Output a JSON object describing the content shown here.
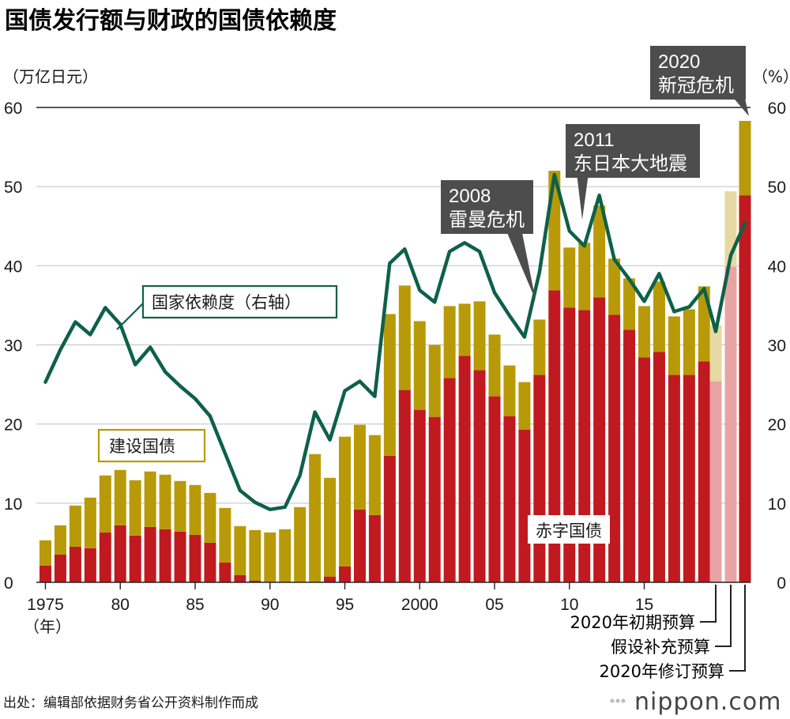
{
  "chart_data": {
    "type": "bar",
    "title": "国债发行额与财政的国债依赖度",
    "y_left_label": "（万亿日元）",
    "y_right_label": "（%）",
    "ylim": [
      0,
      60
    ],
    "y2lim": [
      0,
      60
    ],
    "yticks": [
      "0",
      "10",
      "20",
      "30",
      "40",
      "50",
      "60"
    ],
    "x_ticks": [
      {
        "year": 1975,
        "label": "1975"
      },
      {
        "year": 1980,
        "label": "80"
      },
      {
        "year": 1985,
        "label": "85"
      },
      {
        "year": 1990,
        "label": "90"
      },
      {
        "year": 1995,
        "label": "95"
      },
      {
        "year": 2000,
        "label": "2000"
      },
      {
        "year": 2005,
        "label": "05"
      },
      {
        "year": 2010,
        "label": "10"
      },
      {
        "year": 2015,
        "label": "15"
      }
    ],
    "x_unit": "（年）",
    "categories": [
      1975,
      1976,
      1977,
      1978,
      1979,
      1980,
      1981,
      1982,
      1983,
      1984,
      1985,
      1986,
      1987,
      1988,
      1989,
      1990,
      1991,
      1992,
      1993,
      1994,
      1995,
      1996,
      1997,
      1998,
      1999,
      2000,
      2001,
      2002,
      2003,
      2004,
      2005,
      2006,
      2007,
      2008,
      2009,
      2010,
      2011,
      2012,
      2013,
      2014,
      2015,
      2016,
      2017,
      2018,
      2019
    ],
    "series": [
      {
        "name": "赤字国债",
        "color": "#c0191f",
        "values": [
          2.1,
          3.5,
          4.5,
          4.3,
          6.3,
          7.2,
          5.9,
          7.0,
          6.7,
          6.4,
          6.0,
          5.0,
          2.5,
          0.9,
          0.2,
          0.0,
          0.0,
          0.0,
          0.0,
          0.7,
          2.0,
          9.2,
          8.5,
          16.0,
          24.3,
          21.8,
          20.9,
          25.8,
          28.6,
          26.8,
          23.5,
          21.0,
          19.3,
          26.2,
          36.9,
          34.7,
          34.4,
          36.0,
          33.8,
          31.9,
          28.4,
          29.1,
          26.2,
          26.2,
          27.9
        ]
      },
      {
        "name": "建设国债",
        "color": "#b89a08",
        "values": [
          3.2,
          3.7,
          5.2,
          6.4,
          7.2,
          7.0,
          7.0,
          7.0,
          6.9,
          6.4,
          6.3,
          6.3,
          6.9,
          6.2,
          6.4,
          6.3,
          6.7,
          9.5,
          16.2,
          12.5,
          16.4,
          10.7,
          10.1,
          17.9,
          13.2,
          11.2,
          9.1,
          9.1,
          6.6,
          8.7,
          7.8,
          6.4,
          6.0,
          7.0,
          15.1,
          7.6,
          8.5,
          11.6,
          7.1,
          6.5,
          6.5,
          8.9,
          7.4,
          8.3,
          9.5
        ]
      },
      {
        "name": "国家依赖度（右轴）",
        "color": "#0d6148",
        "values": [
          25.3,
          29.4,
          32.9,
          31.3,
          34.7,
          32.6,
          27.5,
          29.7,
          26.6,
          24.8,
          23.2,
          21.0,
          16.3,
          11.6,
          10.1,
          9.2,
          9.5,
          13.5,
          21.5,
          18.0,
          24.2,
          25.4,
          23.5,
          40.3,
          42.1,
          36.9,
          35.4,
          41.8,
          42.9,
          41.8,
          36.6,
          33.7,
          31.0,
          39.2,
          51.5,
          44.4,
          42.5,
          48.9,
          40.8,
          38.3,
          35.5,
          39.0,
          34.2,
          34.8,
          37.1
        ]
      }
    ],
    "extra_bars_2020": [
      {
        "label": "2020年初期预算",
        "deficit": 25.4,
        "construction": 7.1,
        "pale": true
      },
      {
        "label": "假设补充预算",
        "deficit": 39.9,
        "construction": 9.5,
        "pale": true
      },
      {
        "label": "2020年修订预算",
        "deficit": 48.9,
        "construction": 9.4,
        "pale": false
      }
    ],
    "dependency_2020": [
      31.7,
      41.3,
      45.4
    ],
    "callouts": [
      {
        "year_text": "2008",
        "event": "雷曼危机"
      },
      {
        "year_text": "2011",
        "event": "东日本大地震"
      },
      {
        "year_text": "2020",
        "event": "新冠危机"
      }
    ],
    "legend_labels": {
      "dependency": "国家依赖度（右轴）",
      "construction": "建设国债",
      "deficit": "赤字国债"
    },
    "colors": {
      "deficit": "#c0191f",
      "construction": "#b89a08",
      "deficit_pale": "#e8a4a4",
      "construction_pale": "#e6d9a3",
      "line": "#0d6148",
      "callout_bg": "#4d4d4d",
      "grid": "#c8c8c8"
    }
  },
  "source": "出处：编辑部依据财务省公开资料制作而成",
  "brand": "nippon.com"
}
